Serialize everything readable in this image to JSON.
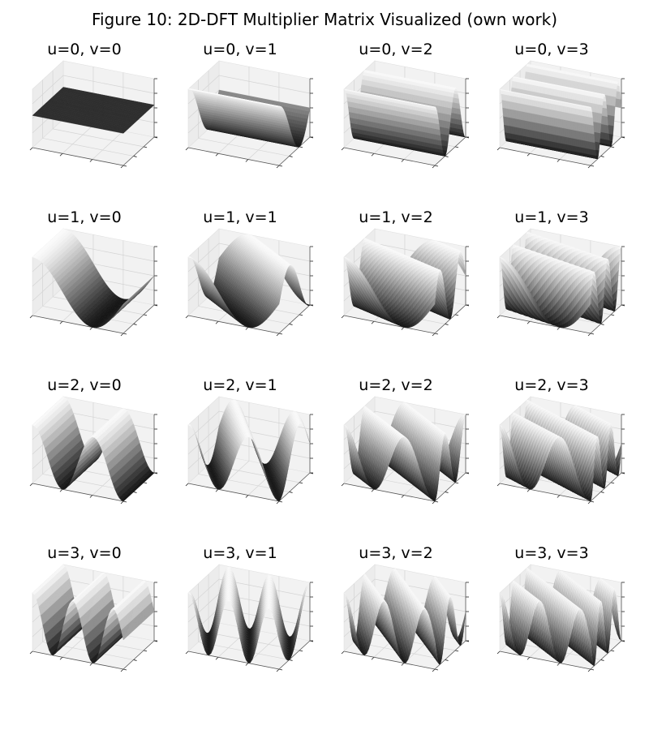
{
  "title": "Figure 10: 2D-DFT Multiplier Matrix Visualized (own work)",
  "chart_data": {
    "type": "surface3d",
    "title": "Figure 10: 2D-DFT Multiplier Matrix Visualized (own work)",
    "colormap": "gray",
    "grid": true,
    "tick_labels_shown": false,
    "function": "cos(2*pi*(u*x + v*y)/N)",
    "panels": [
      {
        "title": "u=0, v=0",
        "u": 0,
        "v": 0
      },
      {
        "title": "u=0, v=1",
        "u": 0,
        "v": 1
      },
      {
        "title": "u=0, v=2",
        "u": 0,
        "v": 2
      },
      {
        "title": "u=0, v=3",
        "u": 0,
        "v": 3
      },
      {
        "title": "u=1, v=0",
        "u": 1,
        "v": 0
      },
      {
        "title": "u=1, v=1",
        "u": 1,
        "v": 1
      },
      {
        "title": "u=1, v=2",
        "u": 1,
        "v": 2
      },
      {
        "title": "u=1, v=3",
        "u": 1,
        "v": 3
      },
      {
        "title": "u=2, v=0",
        "u": 2,
        "v": 0
      },
      {
        "title": "u=2, v=1",
        "u": 2,
        "v": 1
      },
      {
        "title": "u=2, v=2",
        "u": 2,
        "v": 2
      },
      {
        "title": "u=2, v=3",
        "u": 2,
        "v": 3
      },
      {
        "title": "u=3, v=0",
        "u": 3,
        "v": 0
      },
      {
        "title": "u=3, v=1",
        "u": 3,
        "v": 1
      },
      {
        "title": "u=3, v=2",
        "u": 3,
        "v": 2
      },
      {
        "title": "u=3, v=3",
        "u": 3,
        "v": 3
      }
    ]
  }
}
